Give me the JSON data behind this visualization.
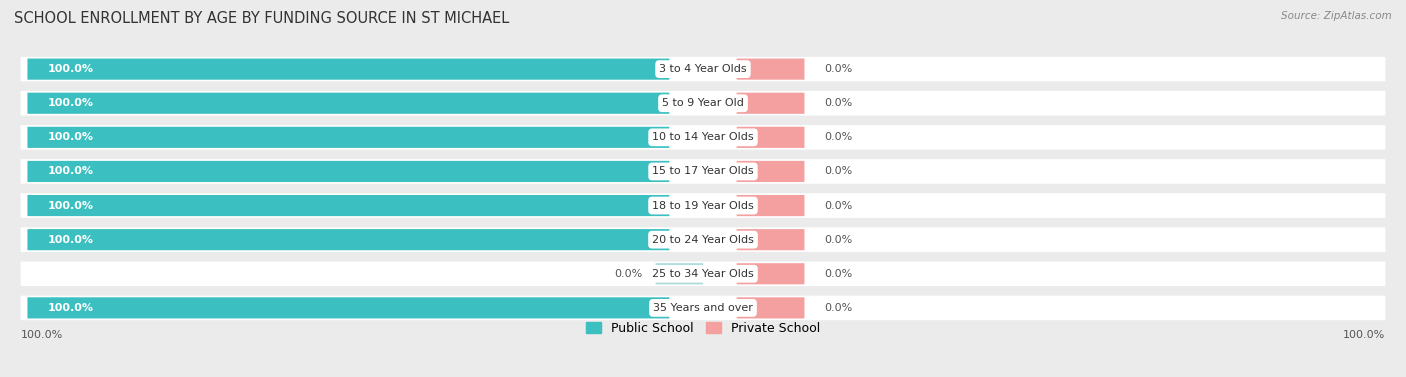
{
  "title": "SCHOOL ENROLLMENT BY AGE BY FUNDING SOURCE IN ST MICHAEL",
  "source": "Source: ZipAtlas.com",
  "categories": [
    "3 to 4 Year Olds",
    "5 to 9 Year Old",
    "10 to 14 Year Olds",
    "15 to 17 Year Olds",
    "18 to 19 Year Olds",
    "20 to 24 Year Olds",
    "25 to 34 Year Olds",
    "35 Years and over"
  ],
  "public_values": [
    100.0,
    100.0,
    100.0,
    100.0,
    100.0,
    100.0,
    0.0,
    100.0
  ],
  "private_values": [
    0.0,
    0.0,
    0.0,
    0.0,
    0.0,
    0.0,
    0.0,
    0.0
  ],
  "public_color": "#3BBFC0",
  "public_color_light": "#A8DADB",
  "private_color": "#F4A0A0",
  "bg_color": "#EBEBEB",
  "bar_bg_color": "#FFFFFF",
  "title_fontsize": 10.5,
  "bar_height": 0.58,
  "legend_public": "Public School",
  "legend_private": "Private School",
  "bottom_left_label": "100.0%",
  "bottom_right_label": "100.0%"
}
